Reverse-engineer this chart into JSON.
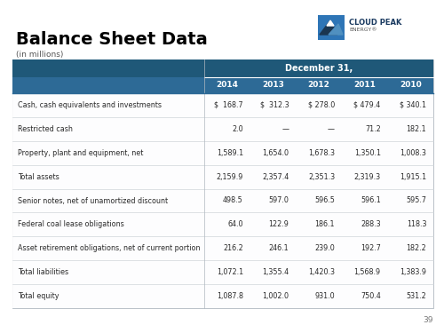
{
  "title": "Balance Sheet Data",
  "subtitle": "(in millions)",
  "page_number": "39",
  "header_bg_dark": "#1f5878",
  "header_bg_mid": "#2d6a96",
  "table_border_color": "#b0b8c0",
  "row_line_color": "#d0d5da",
  "table_bg": "#edf2f7",
  "columns": [
    "2014",
    "2013",
    "2012",
    "2011",
    "2010"
  ],
  "col_header": "December 31,",
  "rows": [
    {
      "label": "Cash, cash equivalents and investments",
      "values": [
        "$  168.7",
        "$  312.3",
        "$ 278.0",
        "$ 479.4",
        "$ 340.1"
      ],
      "bold": false
    },
    {
      "label": "Restricted cash",
      "values": [
        "2.0",
        "—",
        "—",
        "71.2",
        "182.1"
      ],
      "bold": false
    },
    {
      "label": "Property, plant and equipment, net",
      "values": [
        "1,589.1",
        "1,654.0",
        "1,678.3",
        "1,350.1",
        "1,008.3"
      ],
      "bold": false
    },
    {
      "label": "Total assets",
      "values": [
        "2,159.9",
        "2,357.4",
        "2,351.3",
        "2,319.3",
        "1,915.1"
      ],
      "bold": false
    },
    {
      "label": "Senior notes, net of unamortized discount",
      "values": [
        "498.5",
        "597.0",
        "596.5",
        "596.1",
        "595.7"
      ],
      "bold": false
    },
    {
      "label": "Federal coal lease obligations",
      "values": [
        "64.0",
        "122.9",
        "186.1",
        "288.3",
        "118.3"
      ],
      "bold": false
    },
    {
      "label": "Asset retirement obligations, net of current portion",
      "values": [
        "216.2",
        "246.1",
        "239.0",
        "192.7",
        "182.2"
      ],
      "bold": false
    },
    {
      "label": "Total liabilities",
      "values": [
        "1,072.1",
        "1,355.4",
        "1,420.3",
        "1,568.9",
        "1,383.9"
      ],
      "bold": false
    },
    {
      "label": "Total equity",
      "values": [
        "1,087.8",
        "1,002.0",
        "931.0",
        "750.4",
        "531.2"
      ],
      "bold": false
    }
  ],
  "logo_box_color": "#2e75b6",
  "logo_dark_color": "#1a3550",
  "logo_light_color": "#5090c0",
  "text_color": "#2a2a2a"
}
